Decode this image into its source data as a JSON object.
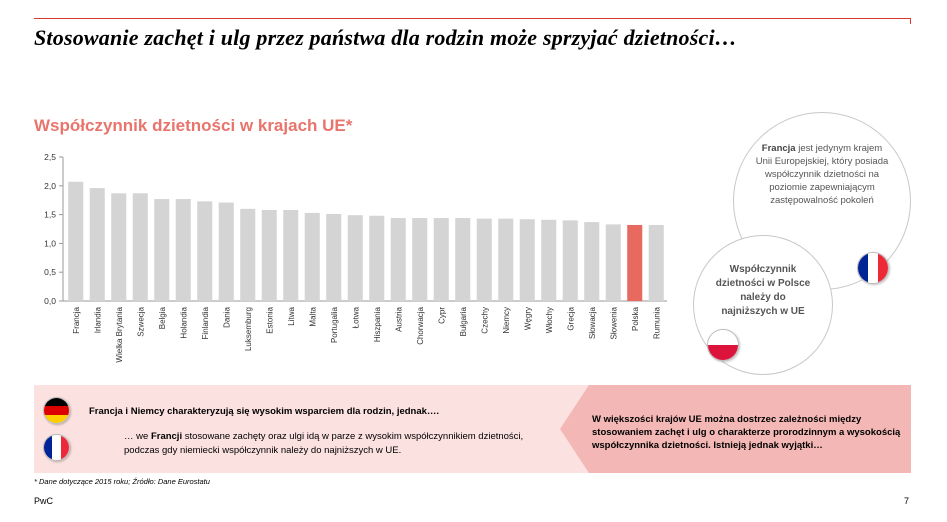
{
  "slide": {
    "title": "Stosowanie zachęt i ulg przez państwa dla rodzin może sprzyjać dzietności…",
    "brand": "PwC",
    "page_number": "7",
    "footnote": "* Dane dotyczące 2015 roku; Źródło: Dane Eurostatu",
    "accent_color": "#d9382e"
  },
  "chart_data": {
    "type": "bar",
    "title": "Współczynnik dzietności w krajach UE*",
    "categories": [
      "Francja",
      "Irlandia",
      "Wielka Brytania",
      "Szwecja",
      "Belgia",
      "Holandia",
      "Finlandia",
      "Dania",
      "Luksemburg",
      "Estonia",
      "Litwa",
      "Malta",
      "Portugalia",
      "Łotwa",
      "Hiszpania",
      "Austria",
      "Chorwacja",
      "Cypr",
      "Bułgaria",
      "Czechy",
      "Niemcy",
      "Węgry",
      "Włochy",
      "Grecja",
      "Słowacja",
      "Słowenia",
      "Polska",
      "Rumunia"
    ],
    "values": [
      2.07,
      1.96,
      1.87,
      1.87,
      1.77,
      1.77,
      1.73,
      1.71,
      1.6,
      1.58,
      1.58,
      1.53,
      1.51,
      1.49,
      1.48,
      1.44,
      1.44,
      1.44,
      1.44,
      1.43,
      1.43,
      1.42,
      1.41,
      1.4,
      1.37,
      1.33,
      1.32,
      1.32
    ],
    "highlight_category": "Polska",
    "bar_color": "#d4d4d4",
    "highlight_color": "#e8695f",
    "ylim": [
      0,
      2.5
    ],
    "yticks": [
      "0,0",
      "0,5",
      "1,0",
      "1,5",
      "2,0",
      "2,5"
    ],
    "xlabel": "",
    "ylabel": ""
  },
  "callouts": {
    "france": {
      "name": "Francja",
      "text": "jest jedynym krajem Unii Europejskiej, który posiada współczynnik dzietności na poziomie zapewniającym zastępowalność pokoleń"
    },
    "poland": {
      "text": "Współczynnik dzietności w Polsce należy do najniższych w UE"
    }
  },
  "bottom": {
    "left_main": "Francja i Niemcy charakteryzują się wysokim wsparciem dla rodzin, jednak….",
    "left_sub_prefix": "… we",
    "left_sub_bold": "Francji",
    "left_sub_rest": "stosowane zachęty oraz ulgi idą w parze z wysokim współczynnikiem dzietności,",
    "left_sub_line2": "podczas gdy niemiecki współczynnik należy do najniższych w UE.",
    "right_text": "W większości krajów UE można dostrzec zależności między stosowaniem zachęt i ulg o charakterze prorodzinnym a wysokością współczynnika dzietności. Istnieją jednak wyjątki…",
    "panel_color": "#fbe1e0",
    "arrow_color": "#f3b8b5"
  },
  "flags": {
    "germany": [
      "#000000",
      "#dd0000",
      "#ffce00"
    ],
    "france": [
      "#002395",
      "#ffffff",
      "#ed2939"
    ],
    "poland": [
      "#ffffff",
      "#dc143c"
    ]
  }
}
